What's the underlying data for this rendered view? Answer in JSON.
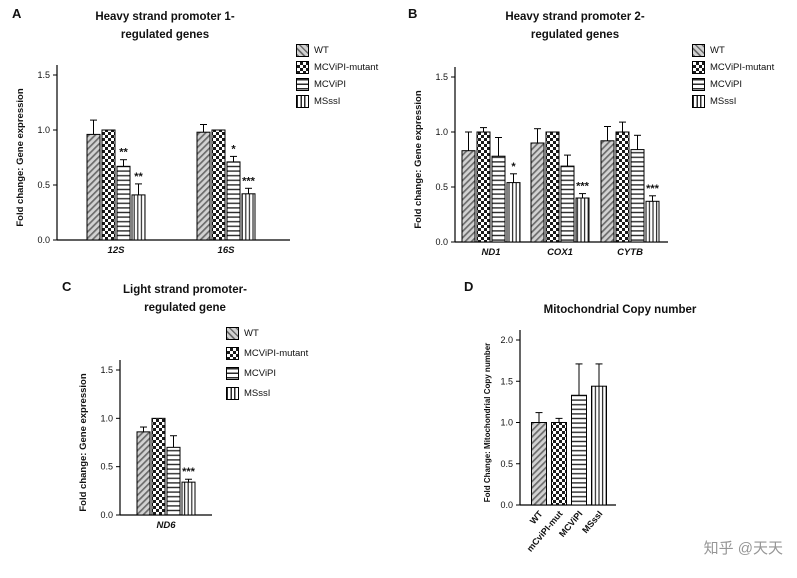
{
  "watermark": {
    "text": "知乎 @天天"
  },
  "chart_data": [
    {
      "panel": "A",
      "type": "bar",
      "title_lines": [
        "Heavy strand promoter 1-",
        "regulated genes"
      ],
      "ylabel": "Fold change: Gene expression",
      "ylim": [
        0,
        1.5
      ],
      "yticks": [
        "0.0",
        "0.5",
        "1.0",
        "1.5"
      ],
      "categories": [
        "12S",
        "16S"
      ],
      "categories_italic": true,
      "legend": true,
      "series": [
        {
          "name": "WT",
          "pattern": "diagonal",
          "values": [
            0.96,
            0.98
          ],
          "errors": [
            0.13,
            0.07
          ],
          "sig": [
            "",
            ""
          ]
        },
        {
          "name": "MCViPI-mutant",
          "pattern": "checker",
          "values": [
            1.0,
            1.0
          ],
          "errors": [
            0,
            0
          ],
          "sig": [
            "",
            ""
          ]
        },
        {
          "name": "MCViPI",
          "pattern": "hlines",
          "values": [
            0.67,
            0.71
          ],
          "errors": [
            0.06,
            0.05
          ],
          "sig": [
            "**",
            "*"
          ]
        },
        {
          "name": "MSssI",
          "pattern": "vlines",
          "values": [
            0.41,
            0.42
          ],
          "errors": [
            0.1,
            0.05
          ],
          "sig": [
            "**",
            "***"
          ]
        }
      ]
    },
    {
      "panel": "B",
      "type": "bar",
      "title_lines": [
        "Heavy strand promoter 2-",
        "regulated genes"
      ],
      "ylabel": "Fold change: Gene expression",
      "ylim": [
        0,
        1.5
      ],
      "yticks": [
        "0.0",
        "0.5",
        "1.0",
        "1.5"
      ],
      "categories": [
        "ND1",
        "COX1",
        "CYTB"
      ],
      "categories_italic": true,
      "legend": true,
      "series": [
        {
          "name": "WT",
          "pattern": "diagonal",
          "values": [
            0.83,
            0.9,
            0.92
          ],
          "errors": [
            0.17,
            0.13,
            0.13
          ],
          "sig": [
            "",
            "",
            ""
          ]
        },
        {
          "name": "MCViPI-mutant",
          "pattern": "checker",
          "values": [
            1.0,
            1.0,
            1.0
          ],
          "errors": [
            0.04,
            0,
            0.09
          ],
          "sig": [
            "",
            "",
            ""
          ]
        },
        {
          "name": "MCViPI",
          "pattern": "hlines",
          "values": [
            0.78,
            0.69,
            0.84
          ],
          "errors": [
            0.17,
            0.1,
            0.13
          ],
          "sig": [
            "",
            "",
            ""
          ]
        },
        {
          "name": "MSssI",
          "pattern": "vlines",
          "values": [
            0.54,
            0.4,
            0.37
          ],
          "errors": [
            0.08,
            0.04,
            0.05
          ],
          "sig": [
            "*",
            "***",
            "***"
          ]
        }
      ]
    },
    {
      "panel": "C",
      "type": "bar",
      "title_lines": [
        "Light strand promoter-",
        "regulated gene"
      ],
      "ylabel": "Fold change: Gene expression",
      "ylim": [
        0,
        1.5
      ],
      "yticks": [
        "0.0",
        "0.5",
        "1.0",
        "1.5"
      ],
      "categories": [
        "ND6"
      ],
      "categories_italic": true,
      "legend": true,
      "series": [
        {
          "name": "WT",
          "pattern": "diagonal",
          "values": [
            0.86
          ],
          "errors": [
            0.05
          ],
          "sig": [
            ""
          ]
        },
        {
          "name": "MCViPI-mutant",
          "pattern": "checker",
          "values": [
            1.0
          ],
          "errors": [
            0
          ],
          "sig": [
            ""
          ]
        },
        {
          "name": "MCViPI",
          "pattern": "hlines",
          "values": [
            0.7
          ],
          "errors": [
            0.12
          ],
          "sig": [
            ""
          ]
        },
        {
          "name": "MSssI",
          "pattern": "vlines",
          "values": [
            0.34
          ],
          "errors": [
            0.03
          ],
          "sig": [
            "***"
          ]
        }
      ]
    },
    {
      "panel": "D",
      "type": "bar",
      "title_lines": [
        "Mitochondrial Copy number"
      ],
      "ylabel": "Fold Change: Mitochondrial Copy number",
      "ylim": [
        0,
        2.0
      ],
      "yticks": [
        "0.0",
        "0.5",
        "1.0",
        "1.5",
        "2.0"
      ],
      "categories": [
        "WT",
        "mCviPI-mut",
        "MCViPI",
        "MSssI"
      ],
      "rotated_labels": true,
      "legend": false,
      "series": [
        {
          "name": "Copy number",
          "pattern": [
            "diagonal",
            "checker",
            "hlines",
            "vlines"
          ],
          "values": [
            1.0,
            1.0,
            1.33,
            1.44
          ],
          "errors": [
            0.12,
            0.05,
            0.38,
            0.27
          ],
          "sig": [
            "",
            "",
            "",
            ""
          ]
        }
      ]
    }
  ]
}
